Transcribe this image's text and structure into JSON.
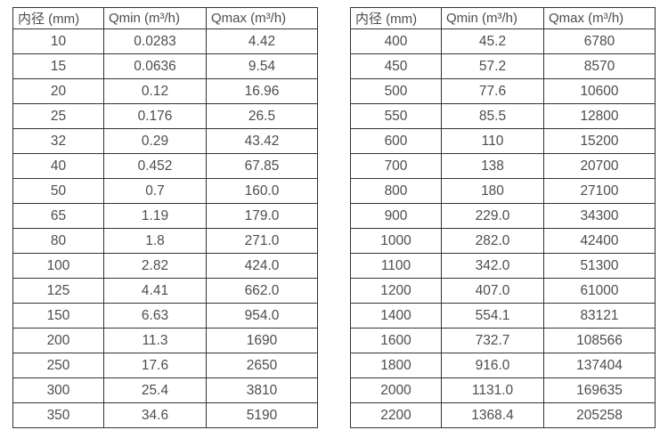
{
  "page": {
    "background_color": "#ffffff",
    "border_color": "#333333",
    "text_color": "#4d4d4d"
  },
  "tables": [
    {
      "name": "flow-range-table-small-diameters",
      "headers": [
        "内径 (mm)",
        "Qmin (m³/h)",
        "Qmax (m³/h)"
      ],
      "rows": [
        [
          "10",
          "0.0283",
          "4.42"
        ],
        [
          "15",
          "0.0636",
          "9.54"
        ],
        [
          "20",
          "0.12",
          "16.96"
        ],
        [
          "25",
          "0.176",
          "26.5"
        ],
        [
          "32",
          "0.29",
          "43.42"
        ],
        [
          "40",
          "0.452",
          "67.85"
        ],
        [
          "50",
          "0.7",
          "160.0"
        ],
        [
          "65",
          "1.19",
          "179.0"
        ],
        [
          "80",
          "1.8",
          "271.0"
        ],
        [
          "100",
          "2.82",
          "424.0"
        ],
        [
          "125",
          "4.41",
          "662.0"
        ],
        [
          "150",
          "6.63",
          "954.0"
        ],
        [
          "200",
          "11.3",
          "1690"
        ],
        [
          "250",
          "17.6",
          "2650"
        ],
        [
          "300",
          "25.4",
          "3810"
        ],
        [
          "350",
          "34.6",
          "5190"
        ]
      ]
    },
    {
      "name": "flow-range-table-large-diameters",
      "headers": [
        "内径 (mm)",
        "Qmin (m³/h)",
        "Qmax (m³/h)"
      ],
      "rows": [
        [
          "400",
          "45.2",
          "6780"
        ],
        [
          "450",
          "57.2",
          "8570"
        ],
        [
          "500",
          "77.6",
          "10600"
        ],
        [
          "550",
          "85.5",
          "12800"
        ],
        [
          "600",
          "110",
          "15200"
        ],
        [
          "700",
          "138",
          "20700"
        ],
        [
          "800",
          "180",
          "27100"
        ],
        [
          "900",
          "229.0",
          "34300"
        ],
        [
          "1000",
          "282.0",
          "42400"
        ],
        [
          "1100",
          "342.0",
          "51300"
        ],
        [
          "1200",
          "407.0",
          "61000"
        ],
        [
          "1400",
          "554.1",
          "83121"
        ],
        [
          "1600",
          "732.7",
          "108566"
        ],
        [
          "1800",
          "916.0",
          "137404"
        ],
        [
          "2000",
          "1131.0",
          "169635"
        ],
        [
          "2200",
          "1368.4",
          "205258"
        ]
      ]
    }
  ]
}
